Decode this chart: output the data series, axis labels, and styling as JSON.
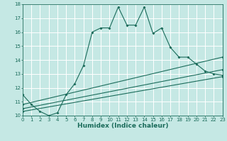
{
  "title": "",
  "xlabel": "Humidex (Indice chaleur)",
  "xlim": [
    0,
    23
  ],
  "ylim": [
    10,
    18
  ],
  "xticks": [
    0,
    1,
    2,
    3,
    4,
    5,
    6,
    7,
    8,
    9,
    10,
    11,
    12,
    13,
    14,
    15,
    16,
    17,
    18,
    19,
    20,
    21,
    22,
    23
  ],
  "yticks": [
    10,
    11,
    12,
    13,
    14,
    15,
    16,
    17,
    18
  ],
  "bg_color": "#c5e8e4",
  "line_color": "#1a6b5a",
  "grid_color": "#ffffff",
  "line1_x": [
    0,
    1,
    2,
    3,
    4,
    5,
    6,
    7,
    8,
    9,
    10,
    11,
    12,
    13,
    14,
    15,
    16,
    17,
    18,
    19,
    20,
    21,
    22,
    23
  ],
  "line1_y": [
    11.5,
    10.8,
    10.3,
    10.0,
    10.2,
    11.5,
    12.3,
    13.6,
    16.0,
    16.3,
    16.3,
    17.8,
    16.5,
    16.5,
    17.8,
    15.9,
    16.3,
    14.9,
    14.2,
    14.2,
    13.7,
    13.2,
    13.0,
    12.9
  ],
  "line2_x": [
    0,
    23
  ],
  "line2_y": [
    10.8,
    14.2
  ],
  "line3_x": [
    0,
    23
  ],
  "line3_y": [
    10.5,
    13.3
  ],
  "line4_x": [
    0,
    23
  ],
  "line4_y": [
    10.3,
    12.8
  ]
}
